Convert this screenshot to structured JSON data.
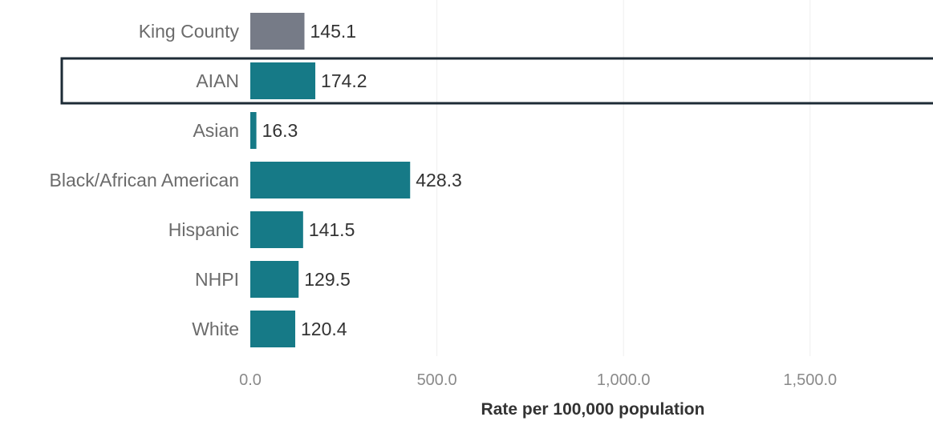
{
  "chart_data": {
    "type": "bar",
    "orientation": "horizontal",
    "categories": [
      "King County",
      "AIAN",
      "Asian",
      "Black/African American",
      "Hispanic",
      "NHPI",
      "White"
    ],
    "values": [
      145.1,
      174.2,
      16.3,
      428.3,
      141.5,
      129.5,
      120.4
    ],
    "value_labels": [
      "145.1",
      "174.2",
      "16.3",
      "428.3",
      "141.5",
      "129.5",
      "120.4"
    ],
    "bar_colors": [
      "#767b87",
      "#167a87",
      "#167a87",
      "#167a87",
      "#167a87",
      "#167a87",
      "#167a87"
    ],
    "highlighted_category": "AIAN",
    "highlight_color": "#1d2b36",
    "xlabel": "Rate per 100,000 population",
    "x_ticks": [
      0,
      500,
      1000,
      1500
    ],
    "x_tick_labels": [
      "0.0",
      "500.0",
      "1,000.0",
      "1,500.0"
    ],
    "xlim": [
      0,
      1850
    ],
    "grid": "vertical",
    "title": ""
  }
}
